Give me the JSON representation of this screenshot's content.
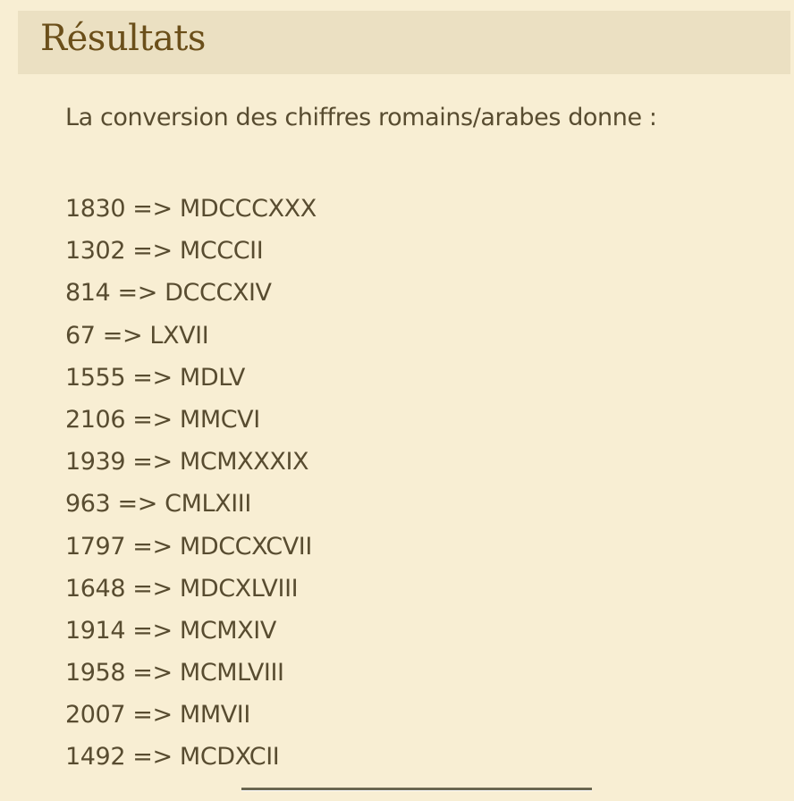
{
  "header": {
    "title": "Résultats"
  },
  "intro": "La conversion des chiffres romains/arabes donne :",
  "results": [
    "1830 => MDCCCXXX",
    "1302 => MCCCII",
    "814 => DCCCXIV",
    "67 => LXVII",
    "1555 => MDLV",
    "2106 => MMCVI",
    "1939 => MCMXXXIX",
    "963 => CMLXIII",
    "1797 => MDCCXCVII",
    "1648 => MDCXLVIII",
    "1914 => MCMXIV",
    "1958 => MCMLVIII",
    "2007 => MMVII",
    "1492 => MCDXCII"
  ],
  "colors": {
    "background": "#f8eed3",
    "header_band": "#ebe0c2",
    "title": "#6b4f1a",
    "text": "#584c30"
  }
}
